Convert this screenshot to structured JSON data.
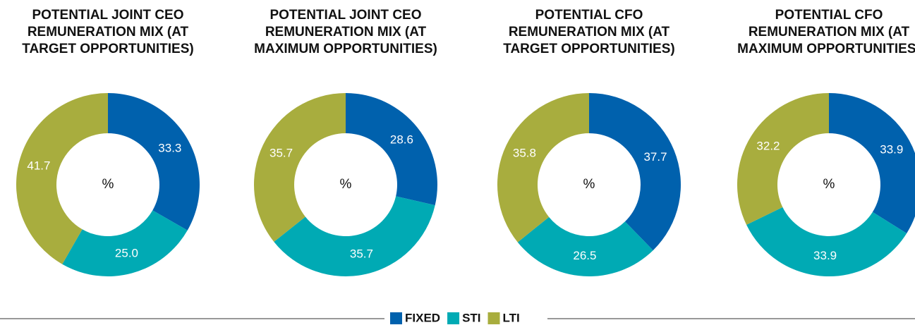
{
  "chart_data": [
    {
      "type": "pie",
      "title": "POTENTIAL JOINT CEO REMUNERATION MIX (AT TARGET OPPORTUNITIES)",
      "center_label": "%",
      "categories": [
        "FIXED",
        "STI",
        "LTI"
      ],
      "values": [
        33.3,
        25.0,
        41.7
      ],
      "value_labels": [
        "33.3",
        "25.0",
        "41.7"
      ],
      "colors": [
        "#0061ad",
        "#00aab4",
        "#a8ad3e"
      ]
    },
    {
      "type": "pie",
      "title": "POTENTIAL JOINT CEO REMUNERATION MIX (AT MAXIMUM OPPORTUNITIES)",
      "center_label": "%",
      "categories": [
        "FIXED",
        "STI",
        "LTI"
      ],
      "values": [
        28.6,
        35.7,
        35.7
      ],
      "value_labels": [
        "28.6",
        "35.7",
        "35.7"
      ],
      "colors": [
        "#0061ad",
        "#00aab4",
        "#a8ad3e"
      ]
    },
    {
      "type": "pie",
      "title": "POTENTIAL CFO REMUNERATION MIX (AT TARGET OPPORTUNITIES)",
      "center_label": "%",
      "categories": [
        "FIXED",
        "STI",
        "LTI"
      ],
      "values": [
        37.7,
        26.5,
        35.8
      ],
      "value_labels": [
        "37.7",
        "26.5",
        "35.8"
      ],
      "colors": [
        "#0061ad",
        "#00aab4",
        "#a8ad3e"
      ]
    },
    {
      "type": "pie",
      "title": "POTENTIAL CFO REMUNERATION MIX (AT MAXIMUM OPPORTUNITIES)",
      "center_label": "%",
      "categories": [
        "FIXED",
        "STI",
        "LTI"
      ],
      "values": [
        33.9,
        33.9,
        32.2
      ],
      "value_labels": [
        "33.9",
        "33.9",
        "32.2"
      ],
      "colors": [
        "#0061ad",
        "#00aab4",
        "#a8ad3e"
      ]
    }
  ]
}
